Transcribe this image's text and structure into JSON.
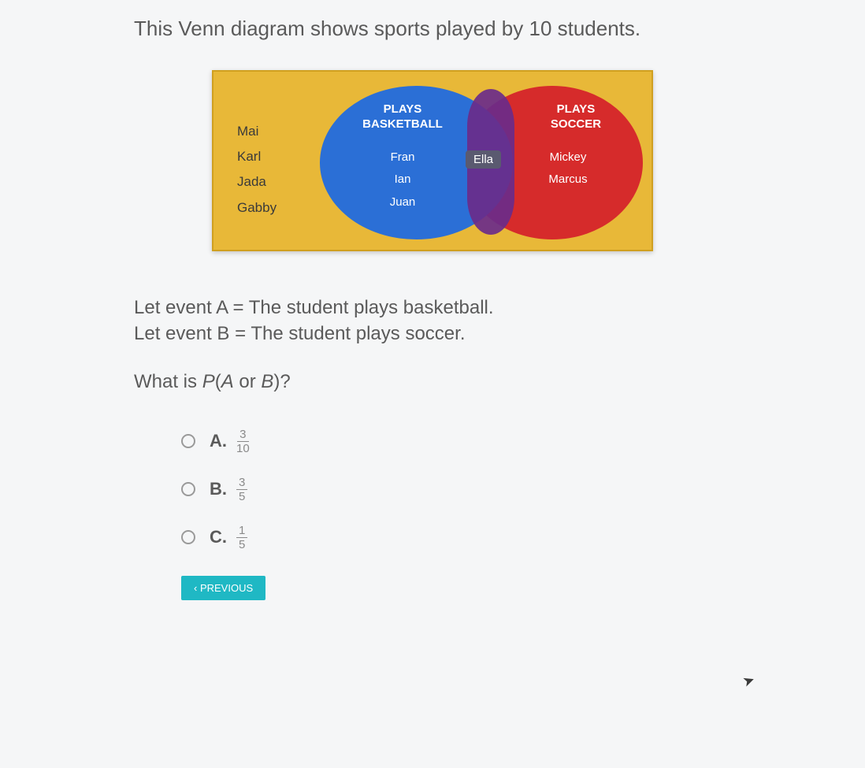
{
  "question": {
    "prompt": "This Venn diagram shows sports played by 10 students.",
    "event_a": "Let event A = The student plays basketball.",
    "event_b": "Let event B = The student plays soccer.",
    "ask": "What is P(A or B)?"
  },
  "venn": {
    "type": "venn-2",
    "background_color": "#e8b838",
    "circle_a": {
      "title_line1": "PLAYS",
      "title_line2": "BASKETBALL",
      "color": "#2b6fd6",
      "members": [
        "Fran",
        "Ian",
        "Juan"
      ]
    },
    "circle_b": {
      "title_line1": "PLAYS",
      "title_line2": "SOCCER",
      "color": "#d62b2b",
      "members": [
        "Mickey",
        "Marcus"
      ]
    },
    "intersection": {
      "color": "#6a2b8a",
      "members": [
        "Ella"
      ]
    },
    "outside": {
      "members": [
        "Mai",
        "Karl",
        "Jada",
        "Gabby"
      ],
      "text_color": "#3a3a3a"
    },
    "text_color_inside": "#ffffff",
    "label_fontsize": 15,
    "name_fontsize": 15
  },
  "options": {
    "a": {
      "letter": "A.",
      "num": "3",
      "den": "10"
    },
    "b": {
      "letter": "B.",
      "num": "3",
      "den": "5"
    },
    "c": {
      "letter": "C.",
      "num": "1",
      "den": "5"
    }
  },
  "buttons": {
    "previous": "‹ PREVIOUS"
  },
  "colors": {
    "page_bg": "#f5f6f7",
    "text": "#5a5a5a",
    "radio_border": "#9a9a9a",
    "btn_bg": "#1fb8c4",
    "btn_text": "#ffffff"
  }
}
